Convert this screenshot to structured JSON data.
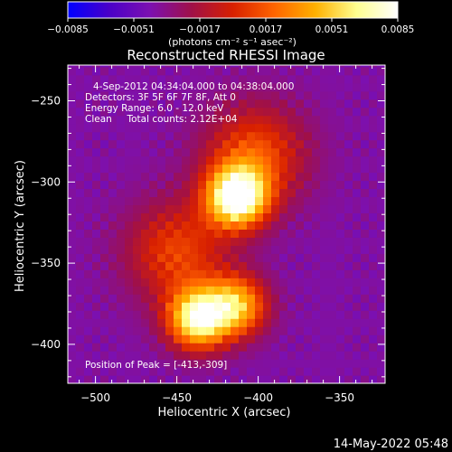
{
  "colorbar": {
    "ticks": [
      "-0.0085",
      "-0.0051",
      "-0.0017",
      "0.0017",
      "0.0051",
      "0.0085"
    ],
    "unit_label": "(photons cm⁻² s⁻¹ asec⁻²)",
    "colors": [
      "#0000ff",
      "#4a00c8",
      "#7c10b0",
      "#a01048",
      "#d82000",
      "#ff6400",
      "#ffb000",
      "#ffff90",
      "#ffffff"
    ]
  },
  "chart_data": {
    "type": "heatmap",
    "title": "Reconstructed RHESSI Image",
    "xlabel": "Heliocentric X (arcsec)",
    "ylabel": "Heliocentric Y (arcsec)",
    "xlim": [
      -517,
      -322
    ],
    "ylim": [
      -424,
      -228
    ],
    "xticks": [
      -500,
      -450,
      -400,
      -350
    ],
    "yticks": [
      -250,
      -300,
      -350,
      -400
    ],
    "xtick_labels": [
      "−500",
      "−450",
      "−400",
      "−350"
    ],
    "ytick_labels": [
      "−250",
      "−300",
      "−350",
      "−400"
    ],
    "annotations": [
      "4-Sep-2012 04:34:04.000 to 04:38:04.000",
      "Detectors: 3F 5F 6F 7F 8F, Att 0",
      "Energy Range: 6.0 - 12.0 keV",
      "Clean     Total counts: 2.12E+04"
    ],
    "peak_label": "Position of Peak = [-413,-309]",
    "peak": [
      -413,
      -309
    ],
    "sources": [
      {
        "x": -413,
        "y": -309,
        "value": 0.0085
      },
      {
        "x": -437,
        "y": -384,
        "value": 0.0072
      },
      {
        "x": -413,
        "y": -376,
        "value": 0.0064
      },
      {
        "x": -450,
        "y": -343,
        "value": 0.003
      },
      {
        "x": -402,
        "y": -283,
        "value": 0.0034
      }
    ],
    "background_value": -0.004
  },
  "footer": {
    "timestamp": "14-May-2022 05:48"
  }
}
